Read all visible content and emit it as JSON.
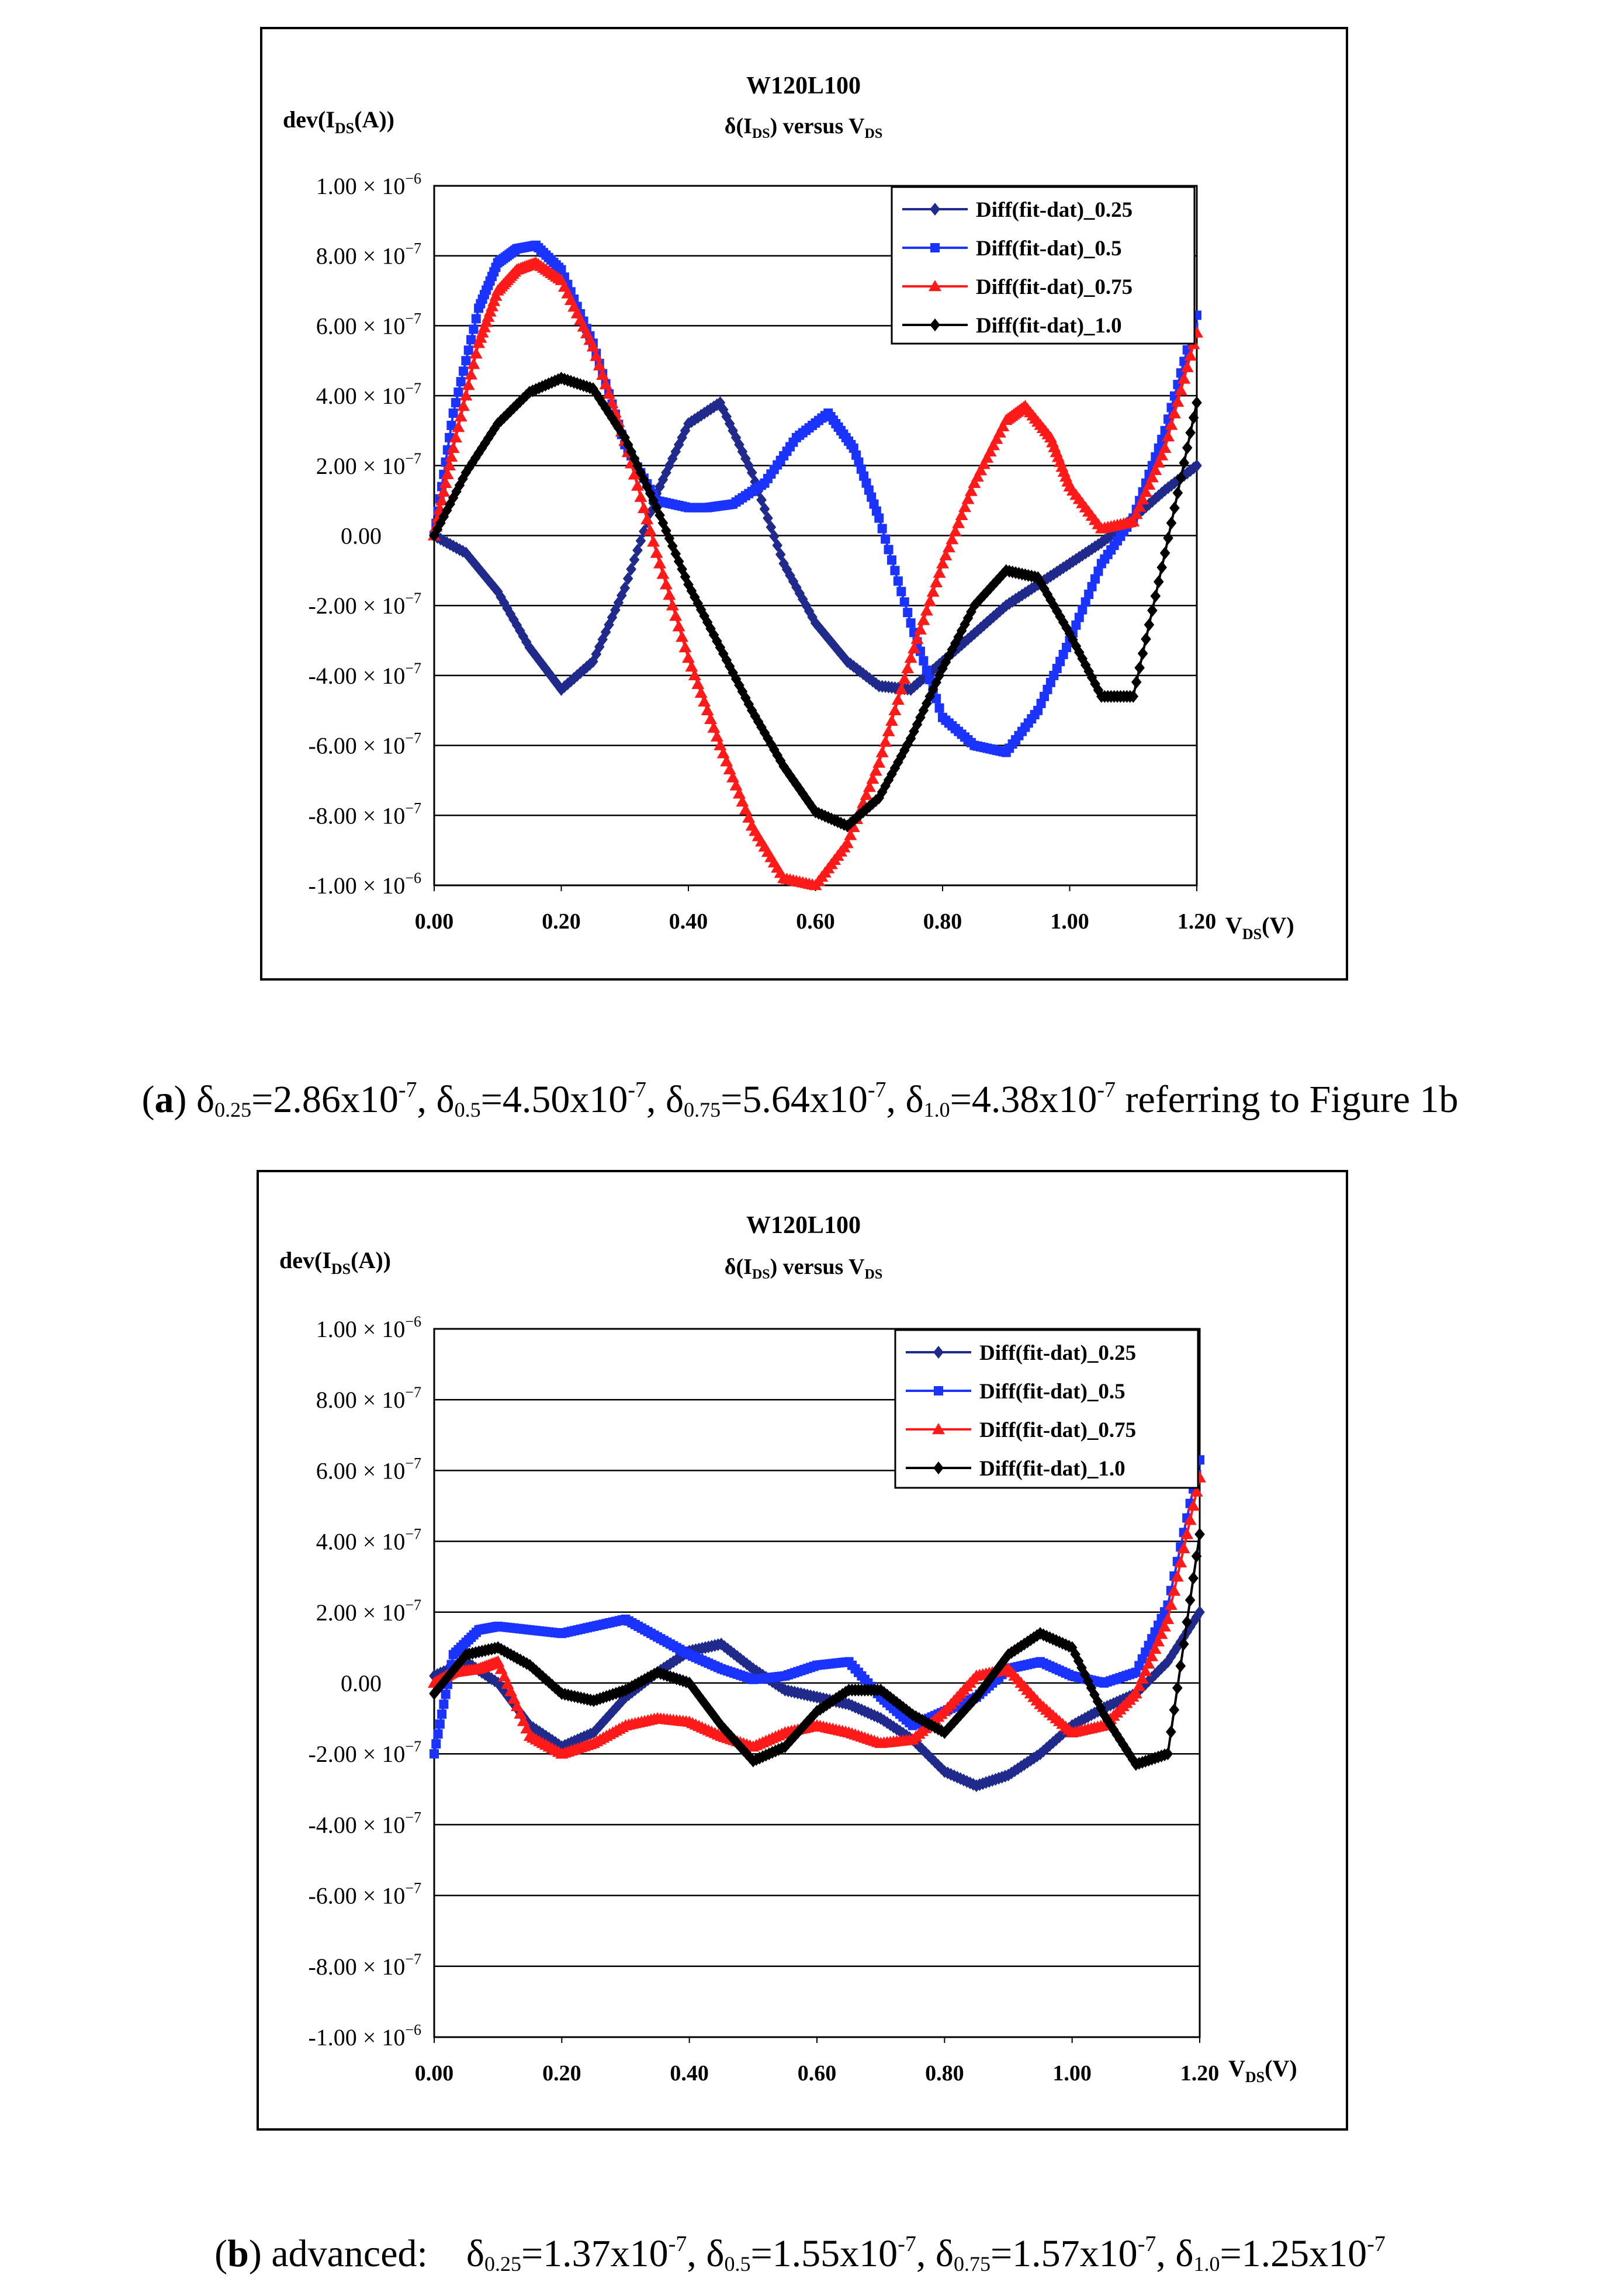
{
  "chart_data": [
    {
      "type": "line",
      "panel": "a",
      "title": "W120L100",
      "subtitle": "δ(I_DS) versus V_DS",
      "ylabel": "dev(I_DS(A))",
      "xlabel": "V_DS(V)",
      "xlim": [
        0,
        1.2
      ],
      "ylim": [
        -1e-06,
        1e-06
      ],
      "xticks": [
        "0.00",
        "0.20",
        "0.40",
        "0.60",
        "0.80",
        "1.00",
        "1.20"
      ],
      "yticks": [
        {
          "mant": "1.00 × 10",
          "exp": "−6"
        },
        {
          "mant": "8.00 × 10",
          "exp": "−7"
        },
        {
          "mant": "6.00 × 10",
          "exp": "−7"
        },
        {
          "mant": "4.00 × 10",
          "exp": "−7"
        },
        {
          "mant": "2.00 × 10",
          "exp": "−7"
        },
        {
          "mant": "0.00",
          "exp": ""
        },
        {
          "mant": "-2.00 × 10",
          "exp": "−7"
        },
        {
          "mant": "-4.00 × 10",
          "exp": "−7"
        },
        {
          "mant": "-6.00 × 10",
          "exp": "−7"
        },
        {
          "mant": "-8.00 × 10",
          "exp": "−7"
        },
        {
          "mant": "-1.00 × 10",
          "exp": "−6"
        }
      ],
      "series": [
        {
          "name": "Diff(fit-dat)_0.25",
          "color": "#1f2a8c",
          "marker": "diamond",
          "x": [
            0,
            0.05,
            0.1,
            0.15,
            0.2,
            0.25,
            0.3,
            0.35,
            0.4,
            0.45,
            0.5,
            0.55,
            0.6,
            0.65,
            0.7,
            0.75,
            0.8,
            0.85,
            0.9,
            0.95,
            1.0,
            1.05,
            1.1,
            1.15,
            1.2
          ],
          "y": [
            0,
            -0.5,
            -1.6,
            -3.2,
            -4.4,
            -3.6,
            -1.5,
            1.2,
            3.2,
            3.8,
            1.8,
            -0.8,
            -2.5,
            -3.6,
            -4.3,
            -4.4,
            -3.6,
            -2.8,
            -2.0,
            -1.4,
            -0.8,
            -0.2,
            0.5,
            1.3,
            2.0
          ]
        },
        {
          "name": "Diff(fit-dat)_0.5",
          "color": "#1a33ff",
          "marker": "square",
          "x": [
            0,
            0.03,
            0.07,
            0.1,
            0.13,
            0.16,
            0.2,
            0.25,
            0.3,
            0.35,
            0.4,
            0.43,
            0.47,
            0.52,
            0.57,
            0.62,
            0.66,
            0.7,
            0.75,
            0.8,
            0.85,
            0.9,
            0.95,
            1.0,
            1.05,
            1.1,
            1.15,
            1.2
          ],
          "y": [
            0,
            3.5,
            6.5,
            7.8,
            8.2,
            8.3,
            7.6,
            5.5,
            2.6,
            1.0,
            0.8,
            0.8,
            0.9,
            1.5,
            2.8,
            3.5,
            2.5,
            0.5,
            -2.5,
            -5.2,
            -6.0,
            -6.2,
            -5.0,
            -3.0,
            -0.8,
            0.5,
            3.0,
            6.3
          ]
        },
        {
          "name": "Diff(fit-dat)_0.75",
          "color": "#ff1a1a",
          "marker": "triangle",
          "x": [
            0,
            0.03,
            0.07,
            0.1,
            0.13,
            0.16,
            0.2,
            0.25,
            0.3,
            0.35,
            0.4,
            0.45,
            0.5,
            0.55,
            0.6,
            0.65,
            0.7,
            0.75,
            0.8,
            0.85,
            0.9,
            0.93,
            0.97,
            1.0,
            1.05,
            1.1,
            1.15,
            1.2
          ],
          "y": [
            0,
            2.5,
            5.5,
            7.0,
            7.6,
            7.8,
            7.3,
            5.4,
            2.7,
            -0.5,
            -3.5,
            -6.0,
            -8.3,
            -9.8,
            -10.0,
            -8.8,
            -6.5,
            -3.5,
            -0.8,
            1.5,
            3.3,
            3.7,
            2.8,
            1.4,
            0.2,
            0.4,
            2.5,
            5.8
          ]
        },
        {
          "name": "Diff(fit-dat)_1.0",
          "color": "#000000",
          "marker": "diamond",
          "x": [
            0,
            0.05,
            0.1,
            0.15,
            0.2,
            0.25,
            0.3,
            0.35,
            0.4,
            0.45,
            0.5,
            0.55,
            0.6,
            0.65,
            0.7,
            0.75,
            0.8,
            0.85,
            0.9,
            0.95,
            1.0,
            1.05,
            1.1,
            1.15,
            1.2
          ],
          "y": [
            0,
            1.8,
            3.2,
            4.1,
            4.5,
            4.2,
            2.8,
            0.8,
            -1.4,
            -3.2,
            -5.0,
            -6.6,
            -7.9,
            -8.3,
            -7.5,
            -5.8,
            -3.8,
            -2.0,
            -1.0,
            -1.2,
            -2.8,
            -4.6,
            -4.6,
            -0.5,
            3.8
          ]
        }
      ],
      "legend_position": "top-right",
      "caption": {
        "label": "a",
        "d025": "δ",
        "s025": "0.25",
        "v025": "=2.86x10",
        "e025": "-7",
        "d05": ", δ",
        "s05": "0.5",
        "v05": "=4.50x10",
        "e05": "-7",
        "d075": ", δ",
        "s075": "0.75",
        "v075": "=5.64x10",
        "e075": "-7",
        "d10": ", δ",
        "s10": "1.0",
        "v10": "=4.38x10",
        "e10": "-7",
        "tail": " referring to Figure 1b"
      }
    },
    {
      "type": "line",
      "panel": "b",
      "title": "W120L100",
      "subtitle": "δ(I_DS) versus V_DS",
      "ylabel": "dev(I_DS(A))",
      "xlabel": "V_DS(V)",
      "xlim": [
        0,
        1.2
      ],
      "ylim": [
        -1e-06,
        1e-06
      ],
      "xticks": [
        "0.00",
        "0.20",
        "0.40",
        "0.60",
        "0.80",
        "1.00",
        "1.20"
      ],
      "yticks": [
        {
          "mant": "1.00 × 10",
          "exp": "−6"
        },
        {
          "mant": "8.00 × 10",
          "exp": "−7"
        },
        {
          "mant": "6.00 × 10",
          "exp": "−7"
        },
        {
          "mant": "4.00 × 10",
          "exp": "−7"
        },
        {
          "mant": "2.00 × 10",
          "exp": "−7"
        },
        {
          "mant": "0.00",
          "exp": ""
        },
        {
          "mant": "-2.00 × 10",
          "exp": "−7"
        },
        {
          "mant": "-4.00 × 10",
          "exp": "−7"
        },
        {
          "mant": "-6.00 × 10",
          "exp": "−7"
        },
        {
          "mant": "-8.00 × 10",
          "exp": "−7"
        },
        {
          "mant": "-1.00 × 10",
          "exp": "−6"
        }
      ],
      "series": [
        {
          "name": "Diff(fit-dat)_0.25",
          "color": "#1f2a8c",
          "marker": "diamond",
          "x": [
            0,
            0.05,
            0.1,
            0.15,
            0.2,
            0.25,
            0.3,
            0.35,
            0.4,
            0.45,
            0.5,
            0.55,
            0.6,
            0.65,
            0.7,
            0.75,
            0.8,
            0.85,
            0.9,
            0.95,
            1.0,
            1.05,
            1.1,
            1.15,
            1.2
          ],
          "y": [
            0.2,
            0.6,
            0.0,
            -1.2,
            -1.8,
            -1.4,
            -0.4,
            0.3,
            0.9,
            1.1,
            0.4,
            -0.2,
            -0.4,
            -0.6,
            -1.0,
            -1.6,
            -2.5,
            -2.9,
            -2.6,
            -2.0,
            -1.2,
            -0.7,
            -0.3,
            0.6,
            2.0
          ]
        },
        {
          "name": "Diff(fit-dat)_0.5",
          "color": "#1a33ff",
          "marker": "square",
          "x": [
            0,
            0.03,
            0.07,
            0.1,
            0.15,
            0.2,
            0.25,
            0.3,
            0.35,
            0.4,
            0.45,
            0.5,
            0.55,
            0.6,
            0.65,
            0.7,
            0.75,
            0.8,
            0.85,
            0.9,
            0.95,
            1.0,
            1.05,
            1.1,
            1.15,
            1.2
          ],
          "y": [
            -2.0,
            0.8,
            1.5,
            1.6,
            1.5,
            1.4,
            1.6,
            1.8,
            1.3,
            0.8,
            0.4,
            0.1,
            0.2,
            0.5,
            0.6,
            -0.4,
            -1.2,
            -0.8,
            -0.4,
            0.4,
            0.6,
            0.2,
            0.0,
            0.3,
            2.2,
            6.3
          ]
        },
        {
          "name": "Diff(fit-dat)_0.75",
          "color": "#ff1a1a",
          "marker": "triangle",
          "x": [
            0,
            0.03,
            0.07,
            0.1,
            0.15,
            0.2,
            0.25,
            0.3,
            0.35,
            0.4,
            0.45,
            0.5,
            0.55,
            0.6,
            0.65,
            0.7,
            0.75,
            0.8,
            0.85,
            0.9,
            0.95,
            1.0,
            1.05,
            1.1,
            1.15,
            1.2
          ],
          "y": [
            0,
            0.3,
            0.4,
            0.6,
            -1.5,
            -2.0,
            -1.7,
            -1.2,
            -1.0,
            -1.1,
            -1.5,
            -1.8,
            -1.4,
            -1.2,
            -1.4,
            -1.7,
            -1.6,
            -0.8,
            0.2,
            0.4,
            -0.6,
            -1.4,
            -1.2,
            -0.3,
            1.8,
            5.8
          ]
        },
        {
          "name": "Diff(fit-dat)_1.0",
          "color": "#000000",
          "marker": "diamond",
          "x": [
            0,
            0.05,
            0.1,
            0.15,
            0.2,
            0.25,
            0.3,
            0.35,
            0.4,
            0.45,
            0.5,
            0.55,
            0.6,
            0.65,
            0.7,
            0.75,
            0.8,
            0.85,
            0.9,
            0.95,
            1.0,
            1.05,
            1.1,
            1.15,
            1.2
          ],
          "y": [
            -0.3,
            0.8,
            1.0,
            0.5,
            -0.3,
            -0.5,
            -0.2,
            0.3,
            0.0,
            -1.2,
            -2.2,
            -1.8,
            -0.8,
            -0.2,
            -0.2,
            -0.9,
            -1.4,
            -0.4,
            0.8,
            1.4,
            1.0,
            -0.9,
            -2.3,
            -2.0,
            4.2
          ]
        }
      ],
      "legend_position": "top-right",
      "caption": {
        "label": "b",
        "pre": " advanced:    ",
        "d025": "δ",
        "s025": "0.25",
        "v025": "=1.37x10",
        "e025": "-7",
        "d05": ", δ",
        "s05": "0.5",
        "v05": "=1.55x10",
        "e05": "-7",
        "d075": ", δ",
        "s075": "0.75",
        "v075": "=1.57x10",
        "e075": "-7",
        "d10": ", δ",
        "s10": "1.0",
        "v10": "=1.25x10",
        "e10": "-7"
      }
    }
  ]
}
